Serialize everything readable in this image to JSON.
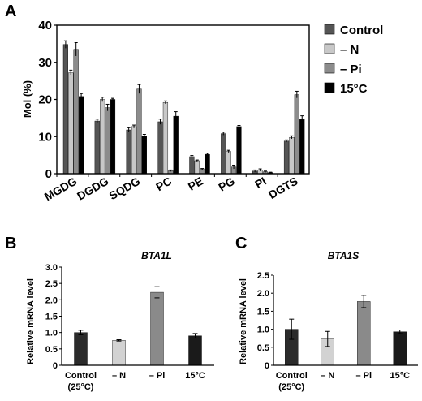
{
  "colors": {
    "Control": "#555555",
    "N": "#c8c8c8",
    "Pi": "#8c8c8c",
    "T15": "#000000",
    "B_bars": [
      "#2b2b2b",
      "#d2d2d2",
      "#8a8a8a",
      "#1a1a1a"
    ]
  },
  "chart_data": [
    {
      "panel": "A",
      "type": "bar",
      "ylabel": "Mol (%)",
      "ylim": [
        0,
        40
      ],
      "yticks": [
        "0",
        "10",
        "20",
        "30",
        "40"
      ],
      "categories": [
        "MGDG",
        "DGDG",
        "SQDG",
        "PC",
        "PE",
        "PG",
        "PI",
        "DGTS"
      ],
      "legend_position": "right",
      "series": [
        {
          "name": "Control",
          "color_key": "Control",
          "values": [
            34.8,
            14.2,
            11.8,
            14.0,
            4.6,
            10.8,
            0.7,
            8.8
          ],
          "errors": [
            1.0,
            0.5,
            0.6,
            0.7,
            0.3,
            0.4,
            0.3,
            0.3
          ]
        },
        {
          "name": "– N",
          "color_key": "N",
          "values": [
            27.2,
            20.0,
            12.7,
            19.2,
            3.5,
            6.0,
            1.0,
            9.8
          ],
          "errors": [
            0.7,
            0.6,
            0.4,
            0.4,
            0.2,
            0.3,
            0.3,
            0.4
          ]
        },
        {
          "name": "– Pi",
          "color_key": "Pi",
          "values": [
            33.5,
            17.8,
            22.8,
            0.8,
            1.2,
            1.8,
            0.5,
            21.3
          ],
          "errors": [
            1.8,
            0.9,
            1.2,
            0.2,
            0.2,
            0.5,
            0.2,
            0.9
          ]
        },
        {
          "name": "15°C",
          "color_key": "T15",
          "values": [
            20.8,
            20.0,
            10.2,
            15.5,
            5.2,
            12.7,
            0.3,
            14.6
          ],
          "errors": [
            0.8,
            0.3,
            0.4,
            1.2,
            0.3,
            0.3,
            0.1,
            1.0
          ]
        }
      ]
    },
    {
      "panel": "B",
      "type": "bar",
      "title": "BTA1L",
      "ylabel": "Relative mRNA level",
      "ylim": [
        0,
        3.0
      ],
      "yticks": [
        "0",
        "0.5",
        "1.0",
        "1.5",
        "2.0",
        "2.5",
        "3.0"
      ],
      "categories": [
        "Control",
        "– N",
        "– Pi",
        "15°C"
      ],
      "category_sublabels": [
        "(25°C)",
        "",
        "",
        ""
      ],
      "values": [
        1.0,
        0.76,
        2.23,
        0.9
      ],
      "errors": [
        0.07,
        0.02,
        0.17,
        0.07
      ]
    },
    {
      "panel": "C",
      "type": "bar",
      "title": "BTA1S",
      "ylabel": "Relative mRNA level",
      "ylim": [
        0,
        2.5
      ],
      "yticks": [
        "0",
        "0.5",
        "1.0",
        "1.5",
        "2.0",
        "2.5"
      ],
      "categories": [
        "Control",
        "– N",
        "– Pi",
        "15°C"
      ],
      "category_sublabels": [
        "(25°C)",
        "",
        "",
        ""
      ],
      "values": [
        1.0,
        0.73,
        1.77,
        0.93
      ],
      "errors": [
        0.28,
        0.21,
        0.17,
        0.05
      ]
    }
  ],
  "panels": {
    "A": "A",
    "B": "B",
    "C": "C"
  }
}
